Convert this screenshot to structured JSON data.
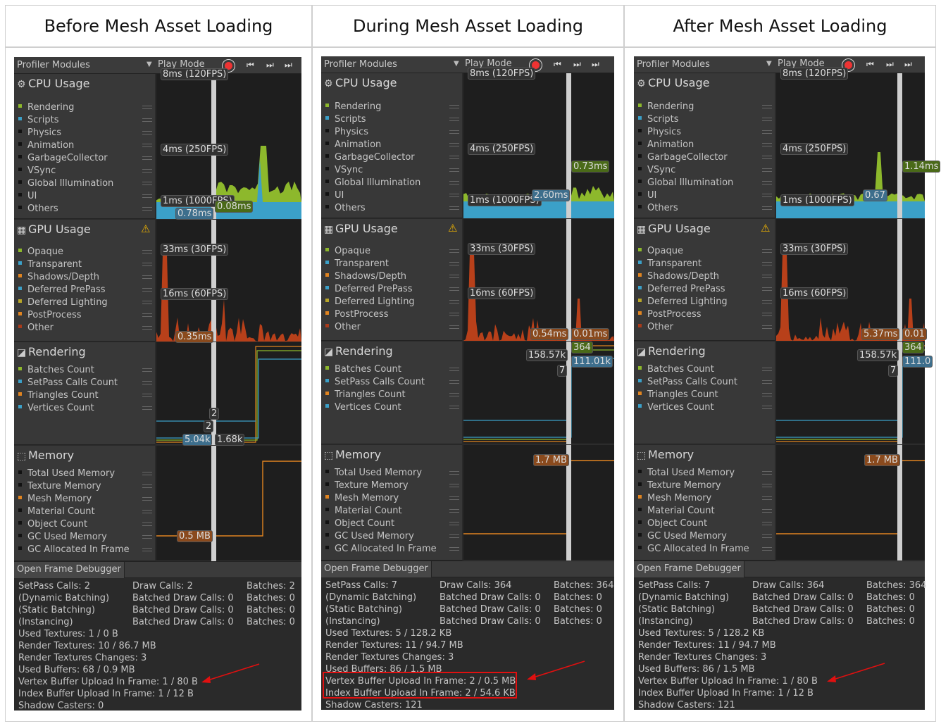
{
  "columns": [
    {
      "title": "Before Mesh Asset Loading"
    },
    {
      "title": "During Mesh Asset Loading"
    },
    {
      "title": "After Mesh Asset Loading"
    }
  ],
  "toolbar": {
    "profiler_modules": "Profiler Modules",
    "play_mode": "Play Mode"
  },
  "modules": {
    "cpu": {
      "title": "CPU Usage",
      "items": [
        "Rendering",
        "Scripts",
        "Physics",
        "Animation",
        "GarbageCollector",
        "VSync",
        "Global Illumination",
        "UI",
        "Others"
      ]
    },
    "gpu": {
      "title": "GPU Usage",
      "items": [
        "Opaque",
        "Transparent",
        "Shadows/Depth",
        "Deferred PrePass",
        "Deferred Lighting",
        "PostProcess",
        "Other"
      ]
    },
    "rendering": {
      "title": "Rendering",
      "items": [
        "Batches Count",
        "SetPass Calls Count",
        "Triangles Count",
        "Vertices Count"
      ]
    },
    "memory": {
      "title": "Memory",
      "items": [
        "Total Used Memory",
        "Texture Memory",
        "Mesh Memory",
        "Material Count",
        "Object Count",
        "GC Used Memory",
        "GC Allocated In Frame"
      ]
    }
  },
  "colors": {
    "cpu": [
      "#8db82c",
      "#3ba0c8",
      "#111111",
      "#111111",
      "#111111",
      "#111111",
      "#111111",
      "#111111",
      "#111111"
    ],
    "gpu": [
      "#8db82c",
      "#3ba0c8",
      "#e08420",
      "#3ba0c8",
      "#b8a628",
      "#e08420",
      "#a83a1a"
    ],
    "rendering": [
      "#8db82c",
      "#3ba0c8",
      "#e08420",
      "#3ba0c8"
    ],
    "memory": [
      "#111111",
      "#111111",
      "#e08420",
      "#111111",
      "#111111",
      "#111111",
      "#111111"
    ]
  },
  "chart_labels": {
    "fps120": "8ms (120FPS)",
    "fps250": "4ms (250FPS)",
    "fps1000": "1ms (1000FPS)",
    "fps30": "33ms (30FPS)",
    "fps60": "16ms (60FPS)"
  },
  "open_frame_debugger": "Open Frame Debugger",
  "panels": [
    {
      "cpu_vals": [
        "0.78ms",
        "0.08ms"
      ],
      "gpu_vals": [
        "0.35ms"
      ],
      "render_vals": [
        "2",
        "2",
        "5.04k",
        "1.68k"
      ],
      "mem_vals": [
        "0.5 MB"
      ],
      "stats_grid": [
        [
          "SetPass Calls: 2",
          "Draw Calls: 2",
          "Batches: 2"
        ],
        [
          "(Dynamic Batching)",
          "Batched Draw Calls: 0",
          "Batches: 0"
        ],
        [
          "(Static Batching)",
          "Batched Draw Calls: 0",
          "Batches: 0"
        ],
        [
          "(Instancing)",
          "Batched Draw Calls: 0",
          "Batches: 0"
        ]
      ],
      "stats_lines": [
        "Used Textures: 1 / 0 B",
        "Render Textures: 10 / 86.7 MB",
        "Render Textures Changes: 3",
        "Used Buffers: 68 / 0.9 MB",
        "Vertex Buffer Upload In Frame: 1 / 80 B",
        "Index Buffer Upload In Frame: 1 / 12 B",
        "Shadow Casters: 0"
      ]
    },
    {
      "cpu_vals": [
        "0.73ms",
        "2.60ms"
      ],
      "gpu_vals": [
        "0.54ms",
        "0.01ms"
      ],
      "render_vals": [
        "158.57k",
        "364",
        "111.01k",
        "7"
      ],
      "mem_vals": [
        "1.7 MB"
      ],
      "stats_grid": [
        [
          "SetPass Calls: 7",
          "Draw Calls: 364",
          "Batches: 364"
        ],
        [
          "(Dynamic Batching)",
          "Batched Draw Calls: 0",
          "Batches: 0"
        ],
        [
          "(Static Batching)",
          "Batched Draw Calls: 0",
          "Batches: 0"
        ],
        [
          "(Instancing)",
          "Batched Draw Calls: 0",
          "Batches: 0"
        ]
      ],
      "stats_lines": [
        "Used Textures: 5 / 128.2 KB",
        "Render Textures: 11 / 94.7 MB",
        "Render Textures Changes: 3",
        "Used Buffers: 86 / 1.5 MB",
        "Vertex Buffer Upload In Frame: 2 / 0.5 MB",
        "Index Buffer Upload In Frame: 2 / 54.6 KB",
        "Shadow Casters: 121"
      ]
    },
    {
      "cpu_vals": [
        "1.14ms",
        "0.67"
      ],
      "gpu_vals": [
        "5.37ms",
        "0.01"
      ],
      "render_vals": [
        "158.57k",
        "364",
        "111.0",
        "7"
      ],
      "mem_vals": [
        "1.7 MB"
      ],
      "stats_grid": [
        [
          "SetPass Calls: 7",
          "Draw Calls: 364",
          "Batches: 364"
        ],
        [
          "(Dynamic Batching)",
          "Batched Draw Calls: 0",
          "Batches: 0"
        ],
        [
          "(Static Batching)",
          "Batched Draw Calls: 0",
          "Batches: 0"
        ],
        [
          "(Instancing)",
          "Batched Draw Calls: 0",
          "Batches: 0"
        ]
      ],
      "stats_lines": [
        "Used Textures: 5 / 128.2 KB",
        "Render Textures: 11 / 94.7 MB",
        "Render Textures Changes: 3",
        "Used Buffers: 86 / 1.5 MB",
        "Vertex Buffer Upload In Frame: 1 / 80 B",
        "Index Buffer Upload In Frame: 1 / 12 B",
        "Shadow Casters: 121"
      ]
    }
  ]
}
